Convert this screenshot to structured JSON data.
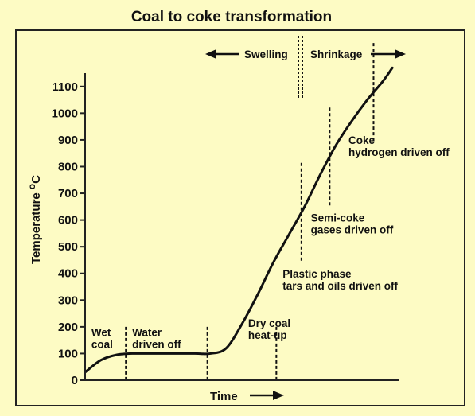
{
  "chart_data": {
    "type": "line",
    "title": "Coal to coke transformation",
    "xlabel": "Time",
    "ylabel": "Temperature",
    "ylabel_unit": "C",
    "ylabel_superscript": "o",
    "ylim": [
      0,
      1150
    ],
    "xlim": [
      0,
      100
    ],
    "yticks": [
      0,
      100,
      200,
      300,
      400,
      500,
      600,
      700,
      800,
      900,
      1000,
      1100
    ],
    "grid": false,
    "series": [
      {
        "x": [
          0,
          5,
          10,
          15,
          20,
          25,
          30,
          35,
          40,
          45,
          50,
          55,
          60,
          65,
          70,
          75,
          80,
          85,
          90,
          95,
          98
        ],
        "values": [
          30,
          75,
          95,
          100,
          100,
          100,
          100,
          100,
          100,
          120,
          210,
          320,
          440,
          545,
          650,
          770,
          880,
          970,
          1050,
          1120,
          1170
        ]
      }
    ],
    "dividers": [
      13,
      39,
      61,
      69,
      78,
      92
    ],
    "stage_labels": [
      {
        "lines": [
          "Wet",
          "coal"
        ],
        "x": 2,
        "y": 165
      },
      {
        "lines": [
          "Water",
          "driven off"
        ],
        "x": 15,
        "y": 165
      },
      {
        "lines": [
          "Dry coal",
          "heat-up"
        ],
        "x": 52,
        "y": 200
      },
      {
        "lines": [
          "Plastic phase",
          "tars and oils driven off"
        ],
        "x": 63,
        "y": 385
      },
      {
        "lines": [
          "Semi-coke",
          "gases driven off"
        ],
        "x": 72,
        "y": 595
      },
      {
        "lines": [
          "Coke",
          "hydrogen driven off"
        ],
        "x": 84,
        "y": 885
      }
    ],
    "swelling_label": "Swelling",
    "shrinkage_label": "Shrinkage"
  }
}
